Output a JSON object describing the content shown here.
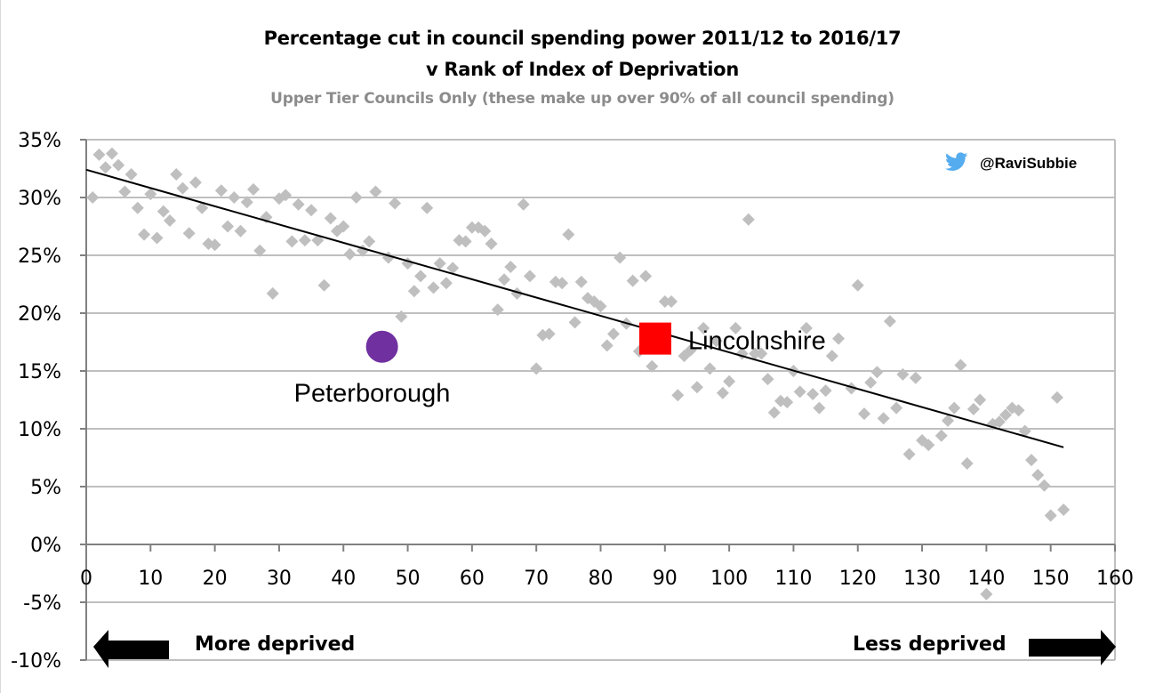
{
  "chart_data": {
    "type": "scatter",
    "title": "Percentage cut in council spending power 2011/12 to 2016/17",
    "title_line2": "v Rank of Index of Deprivation",
    "subtitle": "Upper Tier Councils Only (these make up over 90% of all council spending)",
    "xlabel": "Rank of Index of Deprivation",
    "ylabel": "Percentage cut in council spending power",
    "xlim": [
      0,
      160
    ],
    "ylim": [
      -10,
      35
    ],
    "x_ticks": [
      0,
      10,
      20,
      30,
      40,
      50,
      60,
      70,
      80,
      90,
      100,
      110,
      120,
      130,
      140,
      150,
      160
    ],
    "x_tick_labels": [
      "0",
      "10",
      "20",
      "30",
      "40",
      "50",
      "60",
      "70",
      "80",
      "90",
      "100",
      "110",
      "120",
      "130",
      "140",
      "150",
      "160"
    ],
    "y_ticks": [
      35,
      30,
      25,
      20,
      15,
      10,
      5,
      0,
      -5,
      -10
    ],
    "y_tick_labels": [
      "35%",
      "30%",
      "25%",
      "20%",
      "15%",
      "10%",
      "5%",
      "0%",
      "-5%",
      "-10%"
    ],
    "grid": true,
    "series": [
      {
        "name": "Upper tier councils",
        "marker": "diamond",
        "color": "#bfbfbf",
        "points": [
          [
            1,
            30.0
          ],
          [
            2,
            33.7
          ],
          [
            3,
            32.6
          ],
          [
            4,
            33.8
          ],
          [
            5,
            32.8
          ],
          [
            6,
            30.5
          ],
          [
            7,
            32.0
          ],
          [
            8,
            29.1
          ],
          [
            9,
            26.8
          ],
          [
            10,
            30.3
          ],
          [
            11,
            26.5
          ],
          [
            12,
            28.8
          ],
          [
            13,
            28.0
          ],
          [
            14,
            32.0
          ],
          [
            15,
            30.8
          ],
          [
            16,
            26.9
          ],
          [
            17,
            31.3
          ],
          [
            18,
            29.1
          ],
          [
            19,
            26.0
          ],
          [
            20,
            25.9
          ],
          [
            21,
            30.6
          ],
          [
            22,
            27.5
          ],
          [
            23,
            30.0
          ],
          [
            24,
            27.1
          ],
          [
            25,
            29.6
          ],
          [
            26,
            30.7
          ],
          [
            27,
            25.4
          ],
          [
            28,
            28.3
          ],
          [
            29,
            21.7
          ],
          [
            30,
            29.9
          ],
          [
            31,
            30.2
          ],
          [
            32,
            26.2
          ],
          [
            33,
            29.4
          ],
          [
            34,
            26.3
          ],
          [
            35,
            28.9
          ],
          [
            36,
            26.3
          ],
          [
            37,
            22.4
          ],
          [
            38,
            28.2
          ],
          [
            39,
            27.1
          ],
          [
            40,
            27.5
          ],
          [
            41,
            25.1
          ],
          [
            42,
            30.0
          ],
          [
            43,
            25.4
          ],
          [
            44,
            26.2
          ],
          [
            45,
            30.5
          ],
          [
            47,
            24.8
          ],
          [
            48,
            29.5
          ],
          [
            49,
            19.7
          ],
          [
            50,
            24.3
          ],
          [
            51,
            21.9
          ],
          [
            52,
            23.2
          ],
          [
            53,
            29.1
          ],
          [
            54,
            22.2
          ],
          [
            55,
            24.3
          ],
          [
            56,
            22.6
          ],
          [
            57,
            23.9
          ],
          [
            58,
            26.3
          ],
          [
            59,
            26.2
          ],
          [
            60,
            27.4
          ],
          [
            61,
            27.4
          ],
          [
            62,
            27.1
          ],
          [
            63,
            26.0
          ],
          [
            64,
            20.3
          ],
          [
            65,
            22.9
          ],
          [
            66,
            24.0
          ],
          [
            67,
            21.7
          ],
          [
            68,
            29.4
          ],
          [
            69,
            23.2
          ],
          [
            70,
            15.2
          ],
          [
            71,
            18.1
          ],
          [
            72,
            18.2
          ],
          [
            73,
            22.7
          ],
          [
            74,
            22.6
          ],
          [
            75,
            26.8
          ],
          [
            76,
            19.2
          ],
          [
            77,
            22.7
          ],
          [
            78,
            21.3
          ],
          [
            79,
            21.0
          ],
          [
            80,
            20.6
          ],
          [
            81,
            17.2
          ],
          [
            82,
            18.2
          ],
          [
            83,
            24.8
          ],
          [
            84,
            19.1
          ],
          [
            85,
            22.8
          ],
          [
            86,
            16.7
          ],
          [
            87,
            23.2
          ],
          [
            88,
            15.4
          ],
          [
            90,
            21.0
          ],
          [
            91,
            21.0
          ],
          [
            92,
            12.9
          ],
          [
            93,
            16.3
          ],
          [
            94,
            16.8
          ],
          [
            95,
            13.6
          ],
          [
            96,
            18.7
          ],
          [
            97,
            15.2
          ],
          [
            98,
            17.6
          ],
          [
            99,
            13.1
          ],
          [
            100,
            14.1
          ],
          [
            101,
            18.7
          ],
          [
            102,
            16.5
          ],
          [
            103,
            28.1
          ],
          [
            104,
            16.5
          ],
          [
            105,
            16.5
          ],
          [
            106,
            14.3
          ],
          [
            107,
            11.4
          ],
          [
            108,
            12.4
          ],
          [
            109,
            12.3
          ],
          [
            110,
            15.0
          ],
          [
            111,
            13.2
          ],
          [
            112,
            18.7
          ],
          [
            113,
            13.0
          ],
          [
            114,
            11.8
          ],
          [
            115,
            13.3
          ],
          [
            116,
            16.3
          ],
          [
            117,
            17.8
          ],
          [
            119,
            13.5
          ],
          [
            120,
            22.4
          ],
          [
            121,
            11.3
          ],
          [
            122,
            14.0
          ],
          [
            123,
            14.9
          ],
          [
            124,
            10.9
          ],
          [
            125,
            19.3
          ],
          [
            126,
            11.8
          ],
          [
            127,
            14.7
          ],
          [
            128,
            7.8
          ],
          [
            129,
            14.4
          ],
          [
            130,
            9.0
          ],
          [
            131,
            8.6
          ],
          [
            133,
            9.4
          ],
          [
            134,
            10.7
          ],
          [
            135,
            11.8
          ],
          [
            136,
            15.5
          ],
          [
            137,
            7.0
          ],
          [
            138,
            11.7
          ],
          [
            139,
            12.5
          ],
          [
            140,
            -4.3
          ],
          [
            141,
            10.4
          ],
          [
            142,
            10.6
          ],
          [
            143,
            11.2
          ],
          [
            144,
            11.8
          ],
          [
            145,
            11.6
          ],
          [
            146,
            9.8
          ],
          [
            147,
            7.3
          ],
          [
            148,
            6.0
          ],
          [
            149,
            5.1
          ],
          [
            150,
            2.5
          ],
          [
            151,
            12.7
          ],
          [
            152,
            3.0
          ]
        ]
      }
    ],
    "trendline": {
      "type": "linear",
      "from": [
        0,
        32.4
      ],
      "to": [
        152,
        8.4
      ],
      "color": "#000000"
    },
    "highlights": [
      {
        "label": "Peterborough",
        "x": 46,
        "y": 17.1,
        "marker": "circle",
        "color": "#7030a0"
      },
      {
        "label": "Lincolnshire",
        "x": 88.5,
        "y": 17.8,
        "marker": "square",
        "color": "#ff0000"
      }
    ],
    "annotations": {
      "left_arrow_label": "More deprived",
      "right_arrow_label": "Less deprived",
      "credit": "@RaviSubbie",
      "credit_icon": "twitter-bird-icon",
      "credit_icon_color": "#55acee"
    },
    "colors": {
      "gridline": "#bfbfbf",
      "axis": "#808080",
      "marker": "#bfbfbf",
      "subtitle": "#8c8c8c"
    }
  }
}
